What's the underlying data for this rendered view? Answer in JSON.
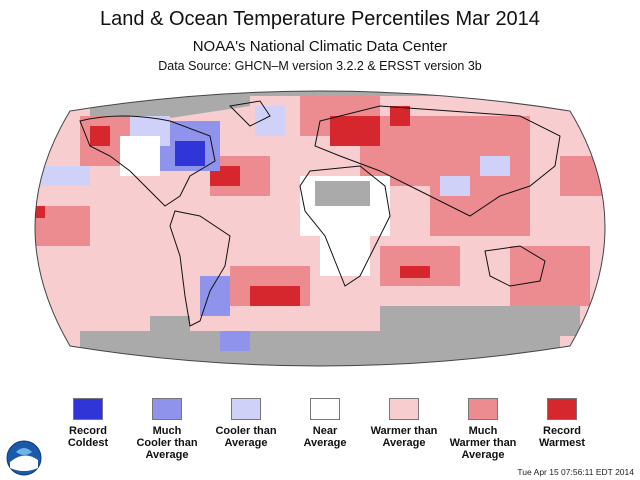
{
  "header": {
    "title": "Land & Ocean Temperature Percentiles Mar 2014",
    "subtitle": "NOAA's National Climatic Data Center",
    "source": "Data Source: GHCN–M version 3.2.2 & ERSST version 3b"
  },
  "map": {
    "projection": "robinson",
    "no_data_color": "#aaaaaa",
    "missing_regions": [
      "Arctic",
      "Antarctica",
      "Southern Ocean south of Australia",
      "parts of Africa"
    ]
  },
  "legend": {
    "items": [
      {
        "label": "Record\nColdest",
        "color": "#2f35d6"
      },
      {
        "label": "Much\nCooler than\nAverage",
        "color": "#8f93ec"
      },
      {
        "label": "Cooler than\nAverage",
        "color": "#cfd1f8"
      },
      {
        "label": "Near\nAverage",
        "color": "#ffffff"
      },
      {
        "label": "Warmer than\nAverage",
        "color": "#f7cdd0"
      },
      {
        "label": "Much\nWarmer than\nAverage",
        "color": "#ec8c91"
      },
      {
        "label": "Record\nWarmest",
        "color": "#d5272d"
      }
    ]
  },
  "footer": {
    "timestamp": "Tue Apr 15 07:56:11 EDT 2014",
    "logo_icon": "noaa-logo-icon"
  }
}
